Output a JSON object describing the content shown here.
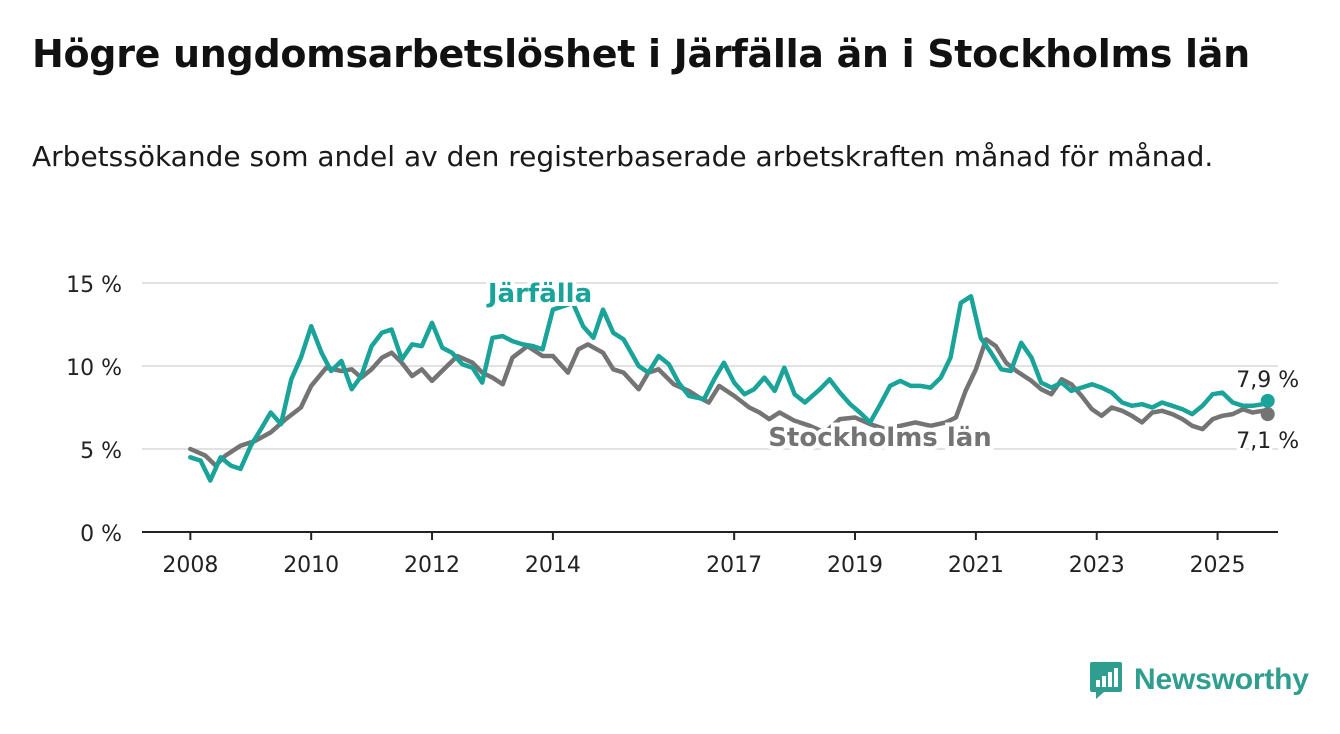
{
  "title": "Högre ungdomsarbetslöshet i Järfälla än i Stockholms län",
  "subtitle": "Arbetssökande som andel av den registerbaserade arbetskraften månad för månad.",
  "brand": {
    "name": "Newsworthy",
    "icon": "newsworthy-logo-icon",
    "color": "#2f9e8f"
  },
  "chart_data": {
    "type": "line",
    "x_axis": {
      "type": "year",
      "range": [
        2007.2,
        2026.0
      ],
      "tick_labels": [
        "2008",
        "2010",
        "2012",
        "2014",
        "2017",
        "2019",
        "2021",
        "2023",
        "2025"
      ]
    },
    "y_axis": {
      "range": [
        0,
        15
      ],
      "unit": "%",
      "tick_labels": [
        "0 %",
        "5 %",
        "10 %",
        "15 %"
      ],
      "tick_values": [
        0,
        5,
        10,
        15
      ]
    },
    "grid": true,
    "series": [
      {
        "name": "Stockholms län",
        "color": "#747474",
        "end_label": "7,1 %",
        "points": [
          [
            2008.0,
            5.0
          ],
          [
            2008.25,
            4.6
          ],
          [
            2008.42,
            4.0
          ],
          [
            2008.58,
            4.6
          ],
          [
            2008.83,
            5.2
          ],
          [
            2009.08,
            5.5
          ],
          [
            2009.33,
            6.0
          ],
          [
            2009.58,
            6.8
          ],
          [
            2009.83,
            7.5
          ],
          [
            2010.0,
            8.8
          ],
          [
            2010.25,
            9.9
          ],
          [
            2010.5,
            9.7
          ],
          [
            2010.67,
            9.8
          ],
          [
            2010.83,
            9.3
          ],
          [
            2011.0,
            9.8
          ],
          [
            2011.17,
            10.5
          ],
          [
            2011.33,
            10.8
          ],
          [
            2011.5,
            10.2
          ],
          [
            2011.67,
            9.4
          ],
          [
            2011.83,
            9.8
          ],
          [
            2012.0,
            9.1
          ],
          [
            2012.25,
            10.0
          ],
          [
            2012.42,
            10.6
          ],
          [
            2012.67,
            10.2
          ],
          [
            2012.83,
            9.6
          ],
          [
            2013.0,
            9.3
          ],
          [
            2013.17,
            8.9
          ],
          [
            2013.33,
            10.5
          ],
          [
            2013.58,
            11.2
          ],
          [
            2013.83,
            10.6
          ],
          [
            2014.0,
            10.6
          ],
          [
            2014.25,
            9.6
          ],
          [
            2014.42,
            11.0
          ],
          [
            2014.58,
            11.3
          ],
          [
            2014.83,
            10.8
          ],
          [
            2015.0,
            9.8
          ],
          [
            2015.17,
            9.6
          ],
          [
            2015.42,
            8.6
          ],
          [
            2015.58,
            9.6
          ],
          [
            2015.75,
            9.8
          ],
          [
            2016.0,
            8.9
          ],
          [
            2016.25,
            8.5
          ],
          [
            2016.42,
            8.1
          ],
          [
            2016.58,
            7.8
          ],
          [
            2016.75,
            8.8
          ],
          [
            2017.0,
            8.2
          ],
          [
            2017.25,
            7.5
          ],
          [
            2017.42,
            7.2
          ],
          [
            2017.58,
            6.8
          ],
          [
            2017.75,
            7.2
          ],
          [
            2018.0,
            6.7
          ],
          [
            2018.25,
            6.4
          ],
          [
            2018.5,
            6.0
          ],
          [
            2018.75,
            6.8
          ],
          [
            2019.0,
            6.9
          ],
          [
            2019.25,
            6.5
          ],
          [
            2019.5,
            6.2
          ],
          [
            2019.75,
            6.4
          ],
          [
            2020.0,
            6.6
          ],
          [
            2020.25,
            6.4
          ],
          [
            2020.5,
            6.6
          ],
          [
            2020.67,
            6.9
          ],
          [
            2020.83,
            8.5
          ],
          [
            2021.0,
            9.8
          ],
          [
            2021.17,
            11.6
          ],
          [
            2021.33,
            11.2
          ],
          [
            2021.5,
            10.2
          ],
          [
            2021.67,
            9.7
          ],
          [
            2021.92,
            9.1
          ],
          [
            2022.08,
            8.6
          ],
          [
            2022.25,
            8.3
          ],
          [
            2022.42,
            9.2
          ],
          [
            2022.58,
            8.9
          ],
          [
            2022.75,
            8.2
          ],
          [
            2022.92,
            7.4
          ],
          [
            2023.08,
            7.0
          ],
          [
            2023.25,
            7.5
          ],
          [
            2023.42,
            7.3
          ],
          [
            2023.58,
            7.0
          ],
          [
            2023.75,
            6.6
          ],
          [
            2023.92,
            7.2
          ],
          [
            2024.08,
            7.3
          ],
          [
            2024.25,
            7.1
          ],
          [
            2024.42,
            6.8
          ],
          [
            2024.58,
            6.4
          ],
          [
            2024.75,
            6.2
          ],
          [
            2024.92,
            6.8
          ],
          [
            2025.08,
            7.0
          ],
          [
            2025.25,
            7.1
          ],
          [
            2025.42,
            7.4
          ],
          [
            2025.58,
            7.2
          ],
          [
            2025.75,
            7.3
          ],
          [
            2025.83,
            7.1
          ]
        ]
      },
      {
        "name": "Järfälla",
        "color": "#1aa399",
        "end_label": "7,9 %",
        "points": [
          [
            2008.0,
            4.5
          ],
          [
            2008.17,
            4.3
          ],
          [
            2008.33,
            3.1
          ],
          [
            2008.5,
            4.5
          ],
          [
            2008.67,
            4.0
          ],
          [
            2008.83,
            3.8
          ],
          [
            2009.0,
            5.2
          ],
          [
            2009.17,
            6.2
          ],
          [
            2009.33,
            7.2
          ],
          [
            2009.5,
            6.5
          ],
          [
            2009.67,
            9.2
          ],
          [
            2009.83,
            10.5
          ],
          [
            2010.0,
            12.4
          ],
          [
            2010.17,
            10.8
          ],
          [
            2010.33,
            9.7
          ],
          [
            2010.5,
            10.3
          ],
          [
            2010.67,
            8.6
          ],
          [
            2010.83,
            9.4
          ],
          [
            2011.0,
            11.2
          ],
          [
            2011.17,
            12.0
          ],
          [
            2011.33,
            12.2
          ],
          [
            2011.5,
            10.4
          ],
          [
            2011.67,
            11.3
          ],
          [
            2011.83,
            11.2
          ],
          [
            2012.0,
            12.6
          ],
          [
            2012.17,
            11.1
          ],
          [
            2012.33,
            10.8
          ],
          [
            2012.5,
            10.1
          ],
          [
            2012.67,
            9.9
          ],
          [
            2012.83,
            9.0
          ],
          [
            2013.0,
            11.7
          ],
          [
            2013.17,
            11.8
          ],
          [
            2013.33,
            11.5
          ],
          [
            2013.5,
            11.3
          ],
          [
            2013.67,
            11.2
          ],
          [
            2013.83,
            11.0
          ],
          [
            2014.0,
            13.4
          ],
          [
            2014.17,
            13.6
          ],
          [
            2014.33,
            13.8
          ],
          [
            2014.5,
            12.4
          ],
          [
            2014.67,
            11.7
          ],
          [
            2014.83,
            13.4
          ],
          [
            2015.0,
            12.0
          ],
          [
            2015.17,
            11.6
          ],
          [
            2015.42,
            10.0
          ],
          [
            2015.58,
            9.6
          ],
          [
            2015.75,
            10.6
          ],
          [
            2015.92,
            10.1
          ],
          [
            2016.08,
            9.0
          ],
          [
            2016.25,
            8.2
          ],
          [
            2016.5,
            8.0
          ],
          [
            2016.67,
            9.2
          ],
          [
            2016.83,
            10.2
          ],
          [
            2017.0,
            9.0
          ],
          [
            2017.17,
            8.3
          ],
          [
            2017.33,
            8.6
          ],
          [
            2017.5,
            9.3
          ],
          [
            2017.67,
            8.5
          ],
          [
            2017.83,
            9.9
          ],
          [
            2018.0,
            8.3
          ],
          [
            2018.17,
            7.8
          ],
          [
            2018.42,
            8.6
          ],
          [
            2018.58,
            9.2
          ],
          [
            2018.75,
            8.4
          ],
          [
            2018.92,
            7.7
          ],
          [
            2019.08,
            7.2
          ],
          [
            2019.25,
            6.6
          ],
          [
            2019.42,
            7.7
          ],
          [
            2019.58,
            8.8
          ],
          [
            2019.75,
            9.1
          ],
          [
            2019.92,
            8.8
          ],
          [
            2020.08,
            8.8
          ],
          [
            2020.25,
            8.7
          ],
          [
            2020.42,
            9.3
          ],
          [
            2020.58,
            10.5
          ],
          [
            2020.75,
            13.8
          ],
          [
            2020.92,
            14.2
          ],
          [
            2021.08,
            11.7
          ],
          [
            2021.25,
            10.8
          ],
          [
            2021.42,
            9.8
          ],
          [
            2021.58,
            9.7
          ],
          [
            2021.75,
            11.4
          ],
          [
            2021.92,
            10.5
          ],
          [
            2022.08,
            9.0
          ],
          [
            2022.25,
            8.7
          ],
          [
            2022.42,
            9.0
          ],
          [
            2022.58,
            8.5
          ],
          [
            2022.75,
            8.7
          ],
          [
            2022.92,
            8.9
          ],
          [
            2023.08,
            8.7
          ],
          [
            2023.25,
            8.4
          ],
          [
            2023.42,
            7.8
          ],
          [
            2023.58,
            7.6
          ],
          [
            2023.75,
            7.7
          ],
          [
            2023.92,
            7.5
          ],
          [
            2024.08,
            7.8
          ],
          [
            2024.25,
            7.6
          ],
          [
            2024.42,
            7.4
          ],
          [
            2024.58,
            7.1
          ],
          [
            2024.75,
            7.6
          ],
          [
            2024.92,
            8.3
          ],
          [
            2025.08,
            8.4
          ],
          [
            2025.25,
            7.8
          ],
          [
            2025.42,
            7.6
          ],
          [
            2025.58,
            7.6
          ],
          [
            2025.75,
            7.7
          ],
          [
            2025.83,
            7.9
          ]
        ]
      }
    ]
  }
}
